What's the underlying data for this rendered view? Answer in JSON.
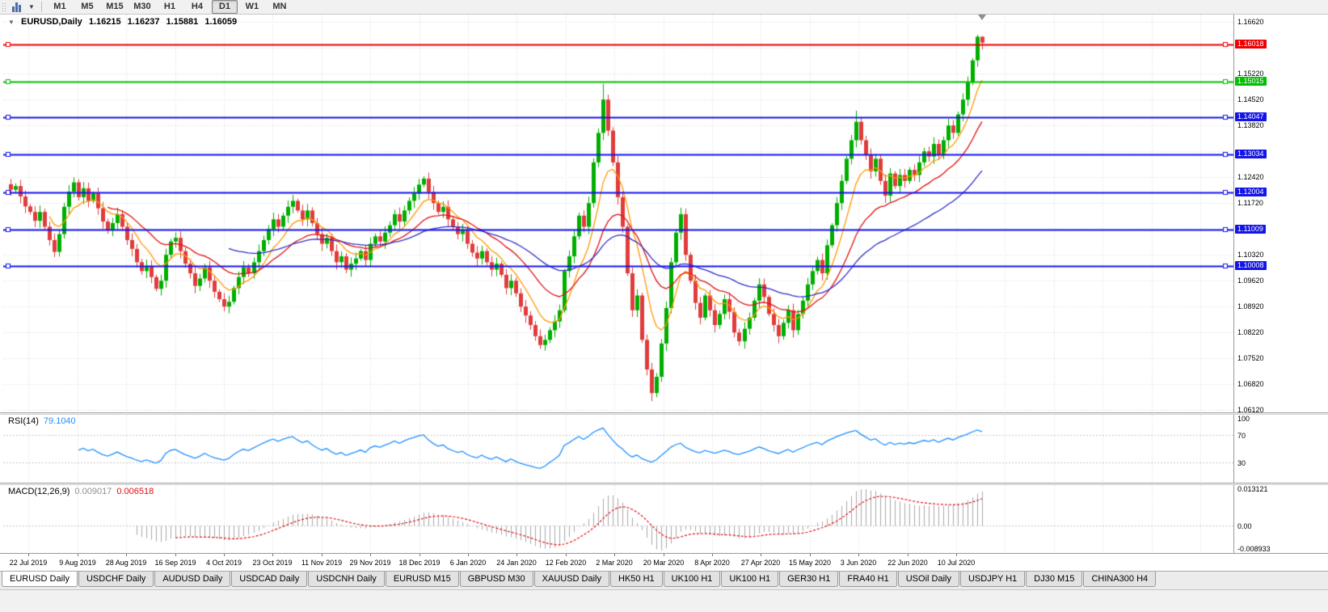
{
  "toolbar": {
    "timeframes": [
      "M1",
      "M5",
      "M15",
      "M30",
      "H1",
      "H4",
      "D1",
      "W1",
      "MN"
    ],
    "selected_timeframe": "D1"
  },
  "chart_header": {
    "symbol": "EURUSD,Daily",
    "open": "1.16215",
    "high": "1.16237",
    "low": "1.15881",
    "close": "1.16059"
  },
  "tabs": {
    "items": [
      "EURUSD Daily",
      "USDCHF Daily",
      "AUDUSD Daily",
      "USDCAD Daily",
      "USDCNH Daily",
      "EURUSD M15",
      "GBPUSD M30",
      "XAUUSD Daily",
      "HK50 H1",
      "UK100 H1",
      "UK100 H1",
      "GER30 H1",
      "FRA40 H1",
      "USOil Daily",
      "USDJPY H1",
      "DJ30 M15",
      "CHINA300 H4"
    ],
    "active": "EURUSD Daily"
  },
  "chart_data": {
    "type": "candlestick",
    "symbol": "EURUSD",
    "timeframe": "Daily",
    "x_tick_labels": [
      "22 Jul 2019",
      "9 Aug 2019",
      "28 Aug 2019",
      "16 Sep 2019",
      "4 Oct 2019",
      "23 Oct 2019",
      "11 Nov 2019",
      "29 Nov 2019",
      "18 Dec 2019",
      "6 Jan 2020",
      "24 Jan 2020",
      "12 Feb 2020",
      "2 Mar 2020",
      "20 Mar 2020",
      "8 Apr 2020",
      "27 Apr 2020",
      "15 May 2020",
      "3 Jun 2020",
      "22 Jun 2020",
      "10 Jul 2020"
    ],
    "y_tick_labels": [
      "1.16620",
      "1.15920",
      "1.15220",
      "1.14520",
      "1.13820",
      "1.13120",
      "1.12420",
      "1.11720",
      "1.11020",
      "1.10320",
      "1.09620",
      "1.08920",
      "1.08220",
      "1.07520",
      "1.06820",
      "1.06120"
    ],
    "y_range": {
      "top": 1.1682,
      "bottom": 1.0606
    },
    "horizontal_lines": [
      {
        "price": 1.16018,
        "label": "1.16018",
        "color": "#EE0000"
      },
      {
        "price": 1.15015,
        "label": "1.15015",
        "color": "#00C000"
      },
      {
        "price": 1.14047,
        "label": "1.14047",
        "color": "#1414E8"
      },
      {
        "price": 1.13034,
        "label": "1.13034",
        "color": "#1414E8"
      },
      {
        "price": 1.12004,
        "label": "1.12004",
        "color": "#1414E8"
      },
      {
        "price": 1.11009,
        "label": "1.11009",
        "color": "#1414E8"
      },
      {
        "price": 1.10008,
        "label": "1.10008",
        "color": "#1414E8"
      }
    ],
    "candles": {
      "up_color": "#00AE00",
      "down_color": "#E03C3C",
      "closes": [
        1.1208,
        1.1218,
        1.119,
        1.1163,
        1.1148,
        1.1124,
        1.1148,
        1.1108,
        1.1072,
        1.104,
        1.1088,
        1.1162,
        1.1203,
        1.1228,
        1.1188,
        1.1212,
        1.1178,
        1.1198,
        1.1158,
        1.1122,
        1.1098,
        1.1118,
        1.1142,
        1.1108,
        1.1072,
        1.1048,
        1.1012,
        1.0988,
        1.1002,
        1.0972,
        1.094,
        1.0962,
        1.1032,
        1.1068,
        1.1078,
        1.1042,
        1.1008,
        1.0982,
        1.0948,
        1.0968,
        1.0998,
        1.0962,
        1.0932,
        1.0912,
        1.0892,
        1.0905,
        1.0942,
        1.0972,
        1.0998,
        1.0982,
        1.1012,
        1.1042,
        1.1072,
        1.1102,
        1.1128,
        1.1108,
        1.1138,
        1.1162,
        1.1178,
        1.1152,
        1.1128,
        1.1152,
        1.1118,
        1.1088,
        1.1062,
        1.1078,
        1.1042,
        1.1012,
        1.1028,
        1.0992,
        1.1008,
        1.1022,
        1.1042,
        1.1018,
        1.1062,
        1.1082,
        1.1068,
        1.1092,
        1.1112,
        1.1142,
        1.1122,
        1.1152,
        1.1178,
        1.1198,
        1.1222,
        1.1238,
        1.1202,
        1.1172,
        1.1148,
        1.1162,
        1.1128,
        1.1108,
        1.1088,
        1.1098,
        1.1062,
        1.1038,
        1.1022,
        1.1042,
        1.1012,
        1.0992,
        1.1008,
        1.0978,
        1.0942,
        1.0962,
        1.0928,
        1.0892,
        1.0868,
        1.0842,
        1.0812,
        1.0788,
        1.0802,
        1.0828,
        1.0852,
        1.0882,
        1.0988,
        1.1028,
        1.1082,
        1.1138,
        1.1108,
        1.1172,
        1.1282,
        1.1362,
        1.1452,
        1.1368,
        1.1282,
        1.1188,
        1.1108,
        1.0982,
        1.0882,
        1.0922,
        1.0802,
        1.0722,
        1.0658,
        1.0702,
        1.0792,
        1.0888,
        1.1012,
        1.1092,
        1.1142,
        1.1032,
        1.0962,
        1.0902,
        1.0862,
        1.0922,
        1.0882,
        1.0842,
        1.0872,
        1.0912,
        1.0878,
        1.0822,
        1.0798,
        1.0832,
        1.0862,
        1.0908,
        1.0952,
        1.0918,
        1.0872,
        1.0842,
        1.0812,
        1.0848,
        1.0882,
        1.0828,
        1.0872,
        1.0908,
        1.0952,
        1.0988,
        1.1018,
        1.0982,
        1.1058,
        1.1112,
        1.1172,
        1.1232,
        1.1292,
        1.1342,
        1.1392,
        1.1342,
        1.1302,
        1.1258,
        1.1292,
        1.1232,
        1.1192,
        1.1252,
        1.1218,
        1.1248,
        1.1232,
        1.1262,
        1.1248,
        1.1282,
        1.1312,
        1.1298,
        1.1332,
        1.1302,
        1.1342,
        1.1382,
        1.1362,
        1.1412,
        1.1452,
        1.1498,
        1.1558,
        1.1622,
        1.1606
      ],
      "extremes": {
        "9": [
          null,
          1.1026
        ],
        "44": [
          null,
          1.0879
        ],
        "109": [
          null,
          1.0778
        ],
        "122": [
          1.1495,
          null
        ],
        "132": [
          null,
          1.0636
        ],
        "174": [
          1.1422,
          null
        ],
        "199": [
          1.1627,
          null
        ],
        "200": [
          1.1624,
          1.1588
        ]
      }
    },
    "moving_averages": [
      {
        "period": 8,
        "color": "#FF9900"
      },
      {
        "period": 20,
        "color": "#E01010"
      },
      {
        "period": 45,
        "color": "#2D2DC8"
      }
    ],
    "rsi": {
      "label": "RSI(14)",
      "value": "79.1040",
      "line_color": "#1E90FF",
      "y_tick_labels": [
        "100",
        "70",
        "30"
      ],
      "guide_levels": [
        70,
        30
      ],
      "range": [
        0,
        100
      ]
    },
    "macd": {
      "label": "MACD(12,26,9)",
      "main_value": "0.009017",
      "signal_value": "0.006518",
      "hist_color": "#A8A8A8",
      "signal_color": "#E01010",
      "y_tick_labels": [
        "0.013121",
        "0.00",
        "-0.008933"
      ],
      "range": {
        "max": 0.013121,
        "min": -0.008933
      }
    }
  }
}
